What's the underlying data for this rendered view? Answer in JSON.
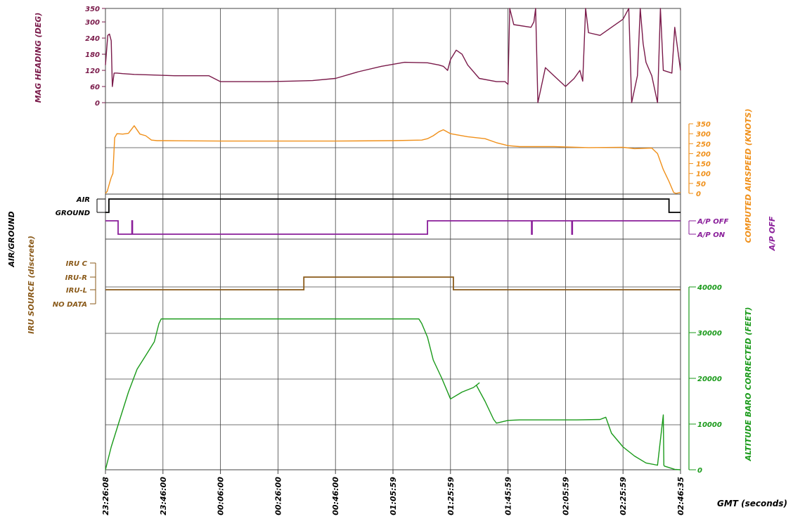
{
  "colors": {
    "heading": "#7a1a4a",
    "airspeed": "#f0901a",
    "airground": "#000000",
    "autopilot": "#8a1e9a",
    "iru": "#8a5a1a",
    "altitude": "#1a9a1a",
    "grid": "#444444"
  },
  "chart_data": {
    "type": "line",
    "x_unit": "GMT (seconds)",
    "x_ticks": [
      "23:26:08",
      "23:46:00",
      "00:06:00",
      "00:26:00",
      "00:46:00",
      "01:05:59",
      "01:25:59",
      "01:45:59",
      "02:05:59",
      "02:25:59",
      "02:46:35"
    ],
    "xlabel": "GMT  (seconds)",
    "series": [
      {
        "name": "MAG  HEADING  (DEG)",
        "axis_side": "left",
        "ylim": [
          0,
          350
        ],
        "ticks": [
          "0",
          "60",
          "120",
          "180",
          "240",
          "300",
          "350"
        ],
        "x": [
          0,
          0.004,
          0.007,
          0.01,
          0.012,
          0.015,
          0.02,
          0.03,
          0.05,
          0.08,
          0.12,
          0.16,
          0.18,
          0.2,
          0.24,
          0.28,
          0.32,
          0.36,
          0.4,
          0.44,
          0.48,
          0.52,
          0.56,
          0.58,
          0.5875,
          0.595,
          0.6,
          0.61,
          0.62,
          0.63,
          0.65,
          0.68,
          0.695,
          0.7,
          0.703,
          0.71,
          0.74,
          0.745,
          0.748,
          0.752,
          0.765,
          0.78,
          0.8,
          0.815,
          0.825,
          0.83,
          0.835,
          0.84,
          0.86,
          0.88,
          0.9,
          0.91,
          0.915,
          0.92,
          0.925,
          0.93,
          0.935,
          0.94,
          0.95,
          0.96,
          0.965,
          0.97,
          0.985,
          0.99,
          1.0
        ],
        "values": [
          140,
          250,
          255,
          230,
          60,
          110,
          110,
          108,
          105,
          103,
          100,
          100,
          100,
          78,
          78,
          78,
          80,
          82,
          90,
          115,
          135,
          150,
          148,
          140,
          135,
          120,
          160,
          195,
          180,
          140,
          90,
          78,
          78,
          68,
          350,
          290,
          280,
          300,
          350,
          0,
          130,
          100,
          60,
          90,
          120,
          80,
          350,
          260,
          250,
          280,
          310,
          350,
          0,
          50,
          100,
          350,
          220,
          150,
          100,
          0,
          350,
          120,
          110,
          280,
          120
        ]
      },
      {
        "name": "COMPUTED  AIRSPEED  (KNOTS)",
        "axis_side": "right",
        "ylim": [
          0,
          350
        ],
        "ticks": [
          "0",
          "50",
          "100",
          "150",
          "200",
          "250",
          "300",
          "350"
        ],
        "x": [
          0,
          0.003,
          0.006,
          0.008,
          0.01,
          0.013,
          0.016,
          0.02,
          0.03,
          0.04,
          0.05,
          0.06,
          0.07,
          0.08,
          0.09,
          0.1,
          0.2,
          0.3,
          0.4,
          0.5,
          0.55,
          0.56,
          0.57,
          0.58,
          0.5875,
          0.6,
          0.61,
          0.63,
          0.66,
          0.68,
          0.7,
          0.72,
          0.78,
          0.84,
          0.9,
          0.92,
          0.95,
          0.96,
          0.97,
          0.98,
          0.988,
          0.992,
          1.0
        ],
        "values": [
          0,
          10,
          40,
          60,
          80,
          100,
          280,
          300,
          298,
          302,
          340,
          298,
          290,
          268,
          265,
          265,
          263,
          263,
          263,
          265,
          268,
          275,
          290,
          310,
          320,
          300,
          295,
          285,
          275,
          255,
          240,
          235,
          235,
          230,
          232,
          225,
          228,
          200,
          120,
          60,
          5,
          0,
          5
        ]
      },
      {
        "name": "AIR/GROUND",
        "axis_side": "left",
        "levels": [
          "GROUND",
          "AIR"
        ],
        "x": [
          0,
          0.004,
          0.006,
          0.975,
          0.98,
          1.0
        ],
        "values": [
          0,
          0,
          1,
          1,
          0,
          0
        ]
      },
      {
        "name": "A/P  OFF",
        "axis_side": "right",
        "levels": [
          "A/P  ON",
          "A/P  OFF"
        ],
        "x": [
          0,
          0.012,
          0.022,
          0.045,
          0.046,
          0.047,
          0.55,
          0.56,
          0.6,
          0.605,
          0.74,
          0.741,
          0.742,
          0.81,
          0.811,
          0.812,
          1.0
        ],
        "values": [
          1,
          1,
          0,
          0,
          1,
          0,
          0,
          1,
          1,
          1,
          1,
          0,
          1,
          1,
          0,
          1,
          1
        ]
      },
      {
        "name": "IRU  SOURCE  (discrete)",
        "axis_side": "left",
        "levels": [
          "NO  DATA",
          "IRU-L",
          "IRU-R",
          "IRU  C"
        ],
        "x": [
          0,
          0.34,
          0.345,
          0.6,
          0.605,
          1.0
        ],
        "values": [
          1,
          1,
          2,
          2,
          1,
          1
        ]
      },
      {
        "name": "ALTITUDE  BARO  CORRECTED  (FEET)",
        "axis_side": "right",
        "ylim": [
          0,
          40000
        ],
        "ticks": [
          "0",
          "10000",
          "20000",
          "30000",
          "40000"
        ],
        "x": [
          0,
          0.01,
          0.025,
          0.04,
          0.055,
          0.07,
          0.085,
          0.093,
          0.097,
          0.15,
          0.25,
          0.35,
          0.45,
          0.54,
          0.545,
          0.55,
          0.56,
          0.57,
          0.585,
          0.6,
          0.62,
          0.64,
          0.65,
          0.645,
          0.66,
          0.675,
          0.68,
          0.7,
          0.72,
          0.74,
          0.78,
          0.82,
          0.86,
          0.87,
          0.88,
          0.9,
          0.92,
          0.94,
          0.96,
          0.97,
          0.971,
          0.972,
          0.98,
          0.99,
          1.0
        ],
        "values": [
          0,
          5000,
          11000,
          17000,
          22000,
          25000,
          28000,
          32000,
          33000,
          33000,
          33000,
          33000,
          33000,
          33000,
          33000,
          32000,
          29000,
          24000,
          20000,
          15500,
          17000,
          18000,
          19000,
          18500,
          15000,
          11000,
          10200,
          10800,
          10900,
          10900,
          10900,
          10900,
          11000,
          11500,
          8000,
          5000,
          3000,
          1500,
          1000,
          12000,
          1000,
          800,
          500,
          100,
          0
        ]
      }
    ]
  }
}
